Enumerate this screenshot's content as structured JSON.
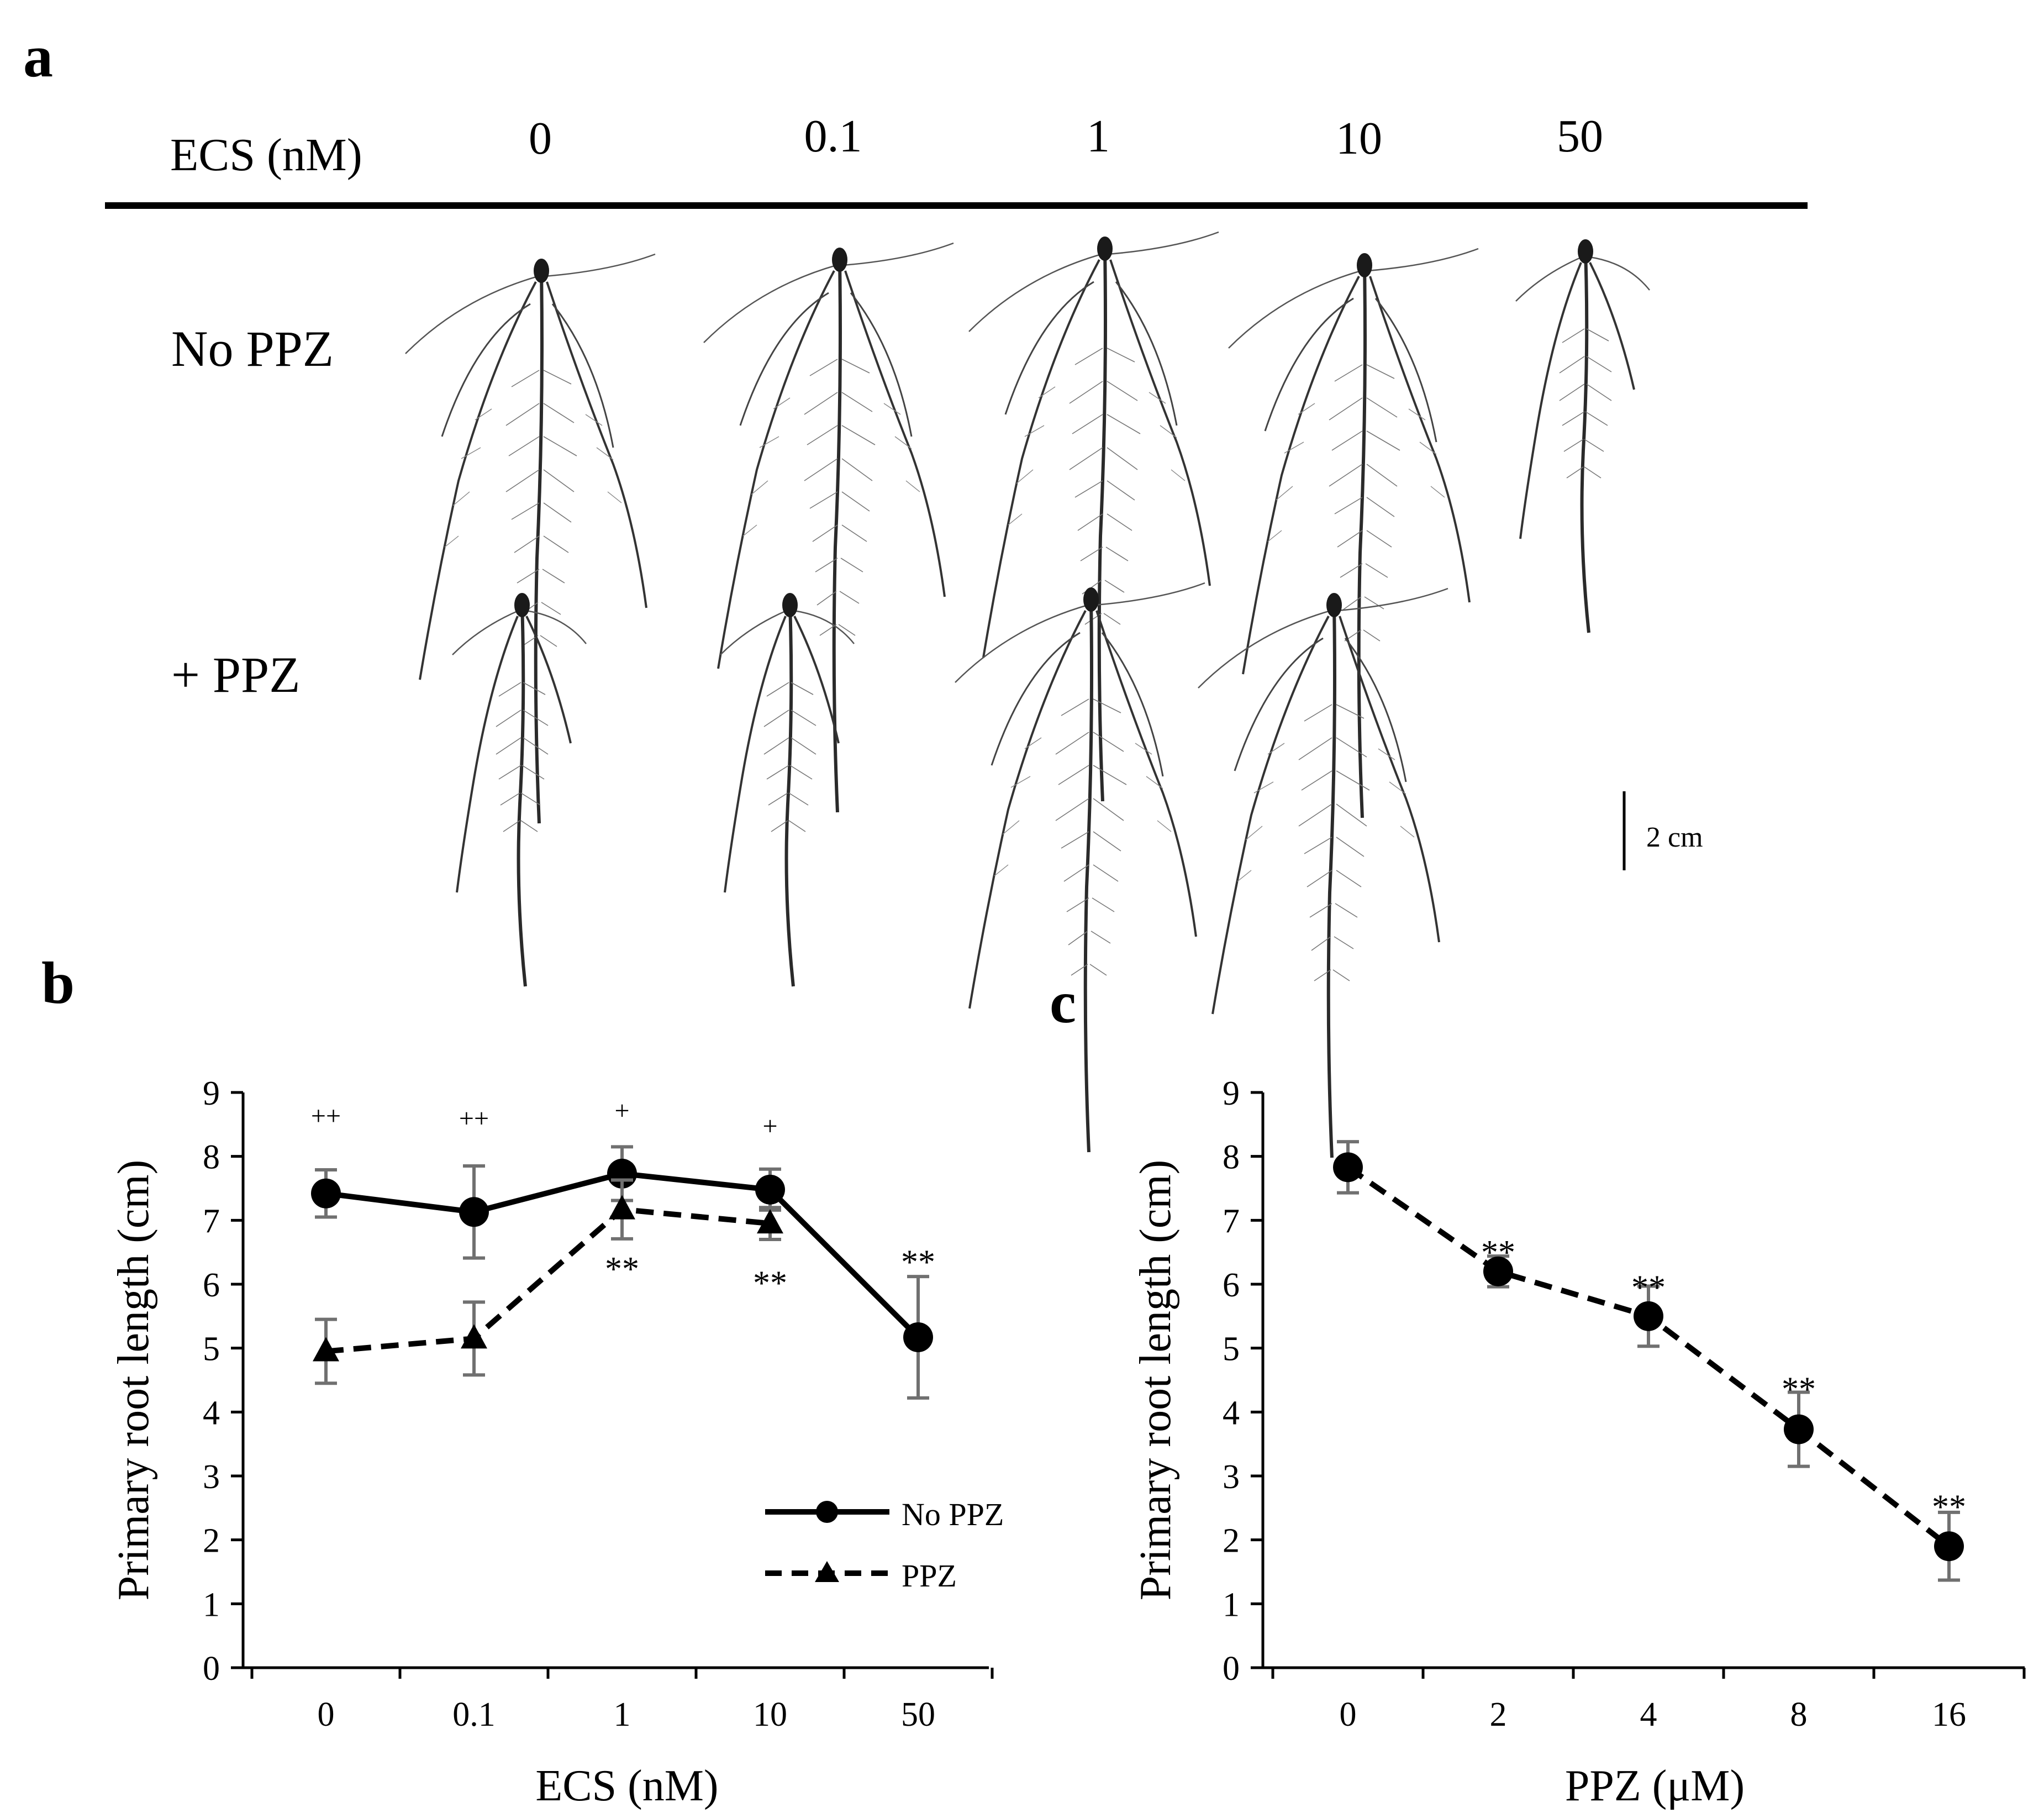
{
  "panel_a": {
    "label": "a",
    "header_label": "ECS (nM)",
    "concentrations": [
      "0",
      "0.1",
      "1",
      "10",
      "50"
    ],
    "rows": [
      "No PPZ",
      "+ PPZ"
    ],
    "scale_bar_label": "2 cm"
  },
  "chart_data": [
    {
      "panel": "b",
      "type": "line",
      "x_type": "categorical",
      "categories": [
        "0",
        "0.1",
        "1",
        "10",
        "50"
      ],
      "xlabel": "ECS (nM)",
      "ylabel": "Primary root length (cm)",
      "ylim": [
        0,
        9
      ],
      "yticks": [
        "0",
        "1",
        "2",
        "3",
        "4",
        "5",
        "6",
        "7",
        "8",
        "9"
      ],
      "series": [
        {
          "name": "No PPZ",
          "marker": "circle",
          "line_style": "solid",
          "values": [
            7.42,
            7.13,
            7.73,
            7.48,
            5.17
          ],
          "errors": [
            0.37,
            0.72,
            0.42,
            0.32,
            0.95
          ]
        },
        {
          "name": "PPZ",
          "marker": "triangle",
          "line_style": "dashed",
          "values": [
            4.95,
            5.15,
            7.17,
            6.95,
            null
          ],
          "errors": [
            0.5,
            0.57,
            0.46,
            0.25,
            null
          ]
        }
      ],
      "annotations": [
        {
          "category_index": 0,
          "text": "++",
          "y": 8.62
        },
        {
          "category_index": 1,
          "text": "++",
          "y": 8.58
        },
        {
          "category_index": 2,
          "text": "+",
          "y": 8.7
        },
        {
          "category_index": 3,
          "text": "+",
          "y": 8.46
        },
        {
          "category_index": 2,
          "text": "**",
          "y": 6.32
        },
        {
          "category_index": 3,
          "text": "**",
          "y": 6.1
        },
        {
          "category_index": 4,
          "text": "**",
          "y": 6.43
        }
      ],
      "legend": {
        "position": "lower-right",
        "entries": [
          "No PPZ",
          "PPZ"
        ]
      }
    },
    {
      "panel": "c",
      "type": "line",
      "x_type": "categorical",
      "categories": [
        "0",
        "2",
        "4",
        "8",
        "16"
      ],
      "xlabel": "PPZ (μM)",
      "ylabel": "Primary root length (cm)",
      "ylim": [
        0,
        9
      ],
      "yticks": [
        "0",
        "1",
        "2",
        "3",
        "4",
        "5",
        "6",
        "7",
        "8",
        "9"
      ],
      "series": [
        {
          "name": "PPZ",
          "marker": "circle",
          "line_style": "dashed",
          "values": [
            7.83,
            6.2,
            5.5,
            3.73,
            1.9
          ],
          "errors": [
            0.4,
            0.24,
            0.47,
            0.58,
            0.53
          ]
        }
      ],
      "annotations": [
        {
          "category_index": 1,
          "text": "**",
          "y": 6.58
        },
        {
          "category_index": 2,
          "text": "**",
          "y": 6.03
        },
        {
          "category_index": 3,
          "text": "**",
          "y": 4.44
        },
        {
          "category_index": 4,
          "text": "**",
          "y": 2.6
        }
      ]
    }
  ]
}
